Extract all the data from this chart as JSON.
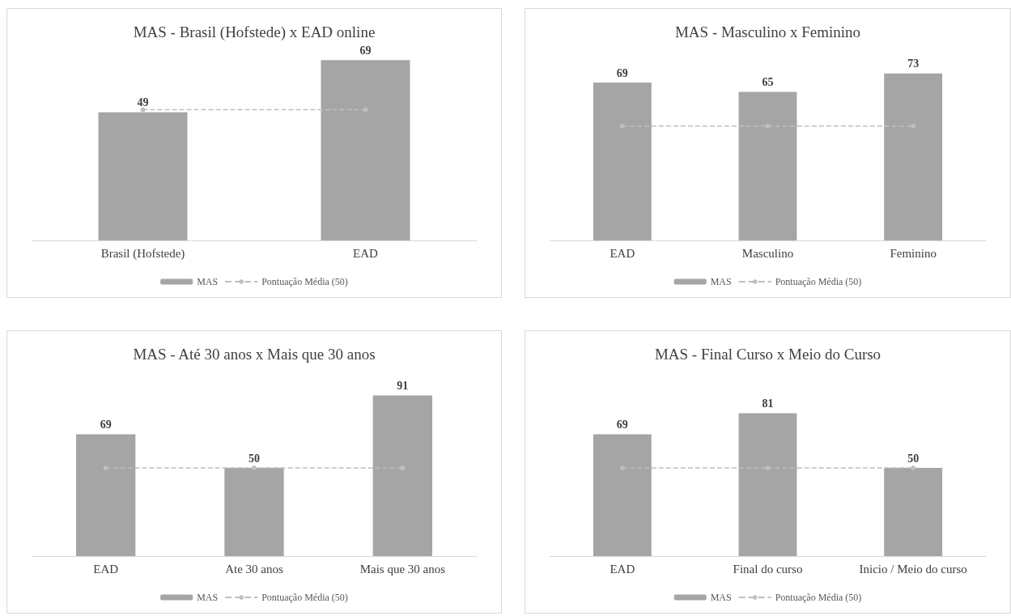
{
  "chart_data": [
    {
      "type": "bar",
      "title": "MAS - Brasil (Hofstede) x EAD online",
      "categories": [
        "Brasil (Hofstede)",
        "EAD"
      ],
      "legend": "bottom",
      "series": [
        {
          "name": "MAS",
          "color": "#a5a5a5",
          "values": [
            49,
            69
          ],
          "value_labels": [
            "49",
            "69"
          ]
        },
        {
          "name": "Pontuação Média (50)",
          "type": "line",
          "color": "#bfbfbf",
          "line_style": "dashed",
          "marker": "circle",
          "values": [
            50,
            50
          ]
        }
      ]
    },
    {
      "type": "bar",
      "title": "MAS - Masculino x Feminino",
      "categories": [
        "EAD",
        "Masculino",
        "Feminino"
      ],
      "legend": "bottom",
      "series": [
        {
          "name": "MAS",
          "color": "#a5a5a5",
          "values": [
            69,
            65,
            73
          ],
          "value_labels": [
            "69",
            "65",
            "73"
          ]
        },
        {
          "name": "Pontuação Média (50)",
          "type": "line",
          "color": "#bfbfbf",
          "line_style": "dashed",
          "marker": "circle",
          "values": [
            50,
            50,
            50
          ]
        }
      ]
    },
    {
      "type": "bar",
      "title": "MAS - Até 30 anos x Mais que 30 anos",
      "categories": [
        "EAD",
        "Ate 30 anos",
        "Mais que 30 anos"
      ],
      "legend": "bottom",
      "series": [
        {
          "name": "MAS",
          "color": "#a5a5a5",
          "values": [
            69,
            50,
            91
          ],
          "value_labels": [
            "69",
            "50",
            "91"
          ]
        },
        {
          "name": "Pontuação Média (50)",
          "type": "line",
          "color": "#bfbfbf",
          "line_style": "dashed",
          "marker": "circle",
          "values": [
            50,
            50,
            50
          ]
        }
      ]
    },
    {
      "type": "bar",
      "title": "MAS - Final Curso x Meio do Curso",
      "categories": [
        "EAD",
        "Final do curso",
        "Inicio / Meio do curso"
      ],
      "legend": "bottom",
      "series": [
        {
          "name": "MAS",
          "color": "#a5a5a5",
          "values": [
            69,
            81,
            50
          ],
          "value_labels": [
            "69",
            "81",
            "50"
          ]
        },
        {
          "name": "Pontuação Média (50)",
          "type": "line",
          "color": "#bfbfbf",
          "line_style": "dashed",
          "marker": "circle",
          "values": [
            50,
            50,
            50
          ]
        }
      ]
    }
  ]
}
